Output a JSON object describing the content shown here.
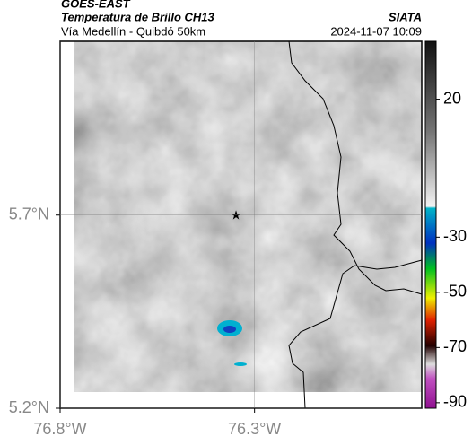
{
  "header": {
    "title": "GOES-EAST",
    "subtitle": "Temperatura de Brillo CH13",
    "region": "Vía Medellín - Quibdó 50km",
    "source": "SIATA",
    "timestamp": "2024-11-07 10:09"
  },
  "map": {
    "latlim": [
      5.2,
      6.15
    ],
    "lonlim": [
      -76.8,
      -75.87
    ],
    "lat_ticks": [
      {
        "value": 5.7,
        "label": "5.7°N"
      },
      {
        "value": 5.2,
        "label": "5.2°N"
      }
    ],
    "lon_ticks": [
      {
        "value": -76.8,
        "label": "76.8°W"
      },
      {
        "value": -76.3,
        "label": "76.3°W"
      }
    ]
  },
  "colorbar": {
    "lim": [
      -92,
      41
    ],
    "ticks": [
      20,
      -30,
      -50,
      -70,
      -90
    ]
  }
}
